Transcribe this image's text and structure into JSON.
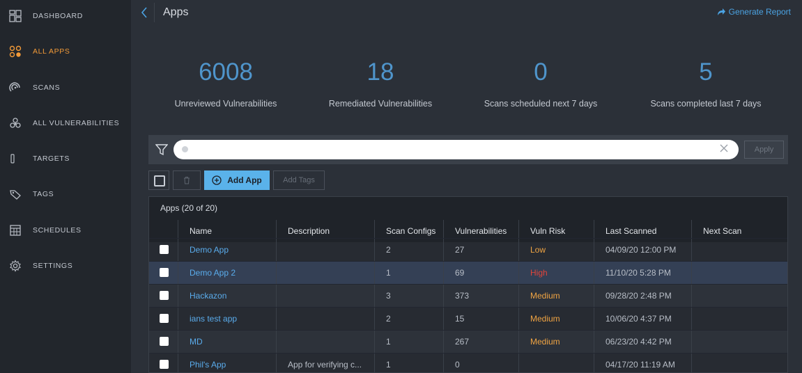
{
  "sidebar": {
    "items": [
      {
        "label": "DASHBOARD",
        "icon": "dashboard-icon"
      },
      {
        "label": "ALL APPS",
        "icon": "apps-icon",
        "active": true
      },
      {
        "label": "SCANS",
        "icon": "scans-icon"
      },
      {
        "label": "ALL VULNERABILITIES",
        "icon": "biohazard-icon"
      },
      {
        "label": "TARGETS",
        "icon": "target-icon"
      },
      {
        "label": "TAGS",
        "icon": "tag-icon"
      },
      {
        "label": "SCHEDULES",
        "icon": "calendar-icon"
      },
      {
        "label": "SETTINGS",
        "icon": "gear-icon"
      }
    ],
    "accent": "#f29a38"
  },
  "header": {
    "title": "Apps",
    "generate_report": "Generate Report"
  },
  "stats": [
    {
      "value": "6008",
      "caption": "Unreviewed Vulnerabilities"
    },
    {
      "value": "18",
      "caption": "Remediated Vulnerabilities"
    },
    {
      "value": "0",
      "caption": "Scans scheduled next 7 days"
    },
    {
      "value": "5",
      "caption": "Scans completed last 7 days"
    }
  ],
  "filter": {
    "apply_label": "Apply"
  },
  "toolbar": {
    "add_app_label": "Add App",
    "add_tags_label": "Add Tags"
  },
  "table": {
    "caption": "Apps (20 of 20)",
    "columns": [
      "Name",
      "Description",
      "Scan Configs",
      "Vulnerabilities",
      "Vuln Risk",
      "Last Scanned",
      "Next Scan"
    ],
    "rows": [
      {
        "name": "Demo App",
        "description": "",
        "scan_configs": "2",
        "vulnerabilities": "27",
        "risk": "Low",
        "last_scanned": "04/09/20 12:00 PM",
        "next_scan": ""
      },
      {
        "name": "Demo App 2",
        "description": "",
        "scan_configs": "1",
        "vulnerabilities": "69",
        "risk": "High",
        "last_scanned": "11/10/20 5:28 PM",
        "next_scan": ""
      },
      {
        "name": "Hackazon",
        "description": "",
        "scan_configs": "3",
        "vulnerabilities": "373",
        "risk": "Medium",
        "last_scanned": "09/28/20 2:48 PM",
        "next_scan": ""
      },
      {
        "name": "ians test app",
        "description": "",
        "scan_configs": "2",
        "vulnerabilities": "15",
        "risk": "Medium",
        "last_scanned": "10/06/20 4:37 PM",
        "next_scan": ""
      },
      {
        "name": "MD",
        "description": "",
        "scan_configs": "1",
        "vulnerabilities": "267",
        "risk": "Medium",
        "last_scanned": "06/23/20 4:42 PM",
        "next_scan": ""
      },
      {
        "name": "Phil's App",
        "description": "App for verifying c...",
        "scan_configs": "1",
        "vulnerabilities": "0",
        "risk": "",
        "last_scanned": "04/17/20 11:19 AM",
        "next_scan": ""
      }
    ]
  }
}
